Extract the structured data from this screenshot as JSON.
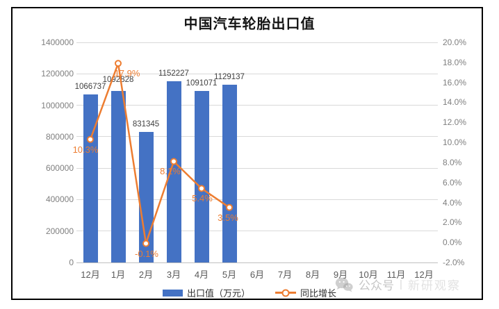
{
  "chart_data": {
    "type": "bar",
    "subtype": "bar-line-combo",
    "title": "中国汽车轮胎出口值",
    "categories": [
      "12月",
      "1月",
      "2月",
      "3月",
      "4月",
      "5月",
      "6月",
      "7月",
      "8月",
      "9月",
      "10月",
      "11月",
      "12月"
    ],
    "series": [
      {
        "name": "出口值（万元）",
        "type": "bar",
        "axis": "left",
        "color": "#4472C4",
        "values": [
          1066737,
          1092828,
          831345,
          1152227,
          1091071,
          1129137
        ],
        "labels": [
          "1066737",
          "1092828",
          "831345",
          "1152227",
          "1091071",
          "1129137"
        ]
      },
      {
        "name": "同比增长",
        "type": "line",
        "axis": "right",
        "color": "#ED7D31",
        "values": [
          10.3,
          17.9,
          -0.1,
          8.1,
          5.4,
          3.5
        ],
        "labels": [
          "10.3%",
          "17.9%",
          "-0.1%",
          "8.1%",
          "5.4%",
          "3.5%"
        ]
      }
    ],
    "left_axis": {
      "min": 0,
      "max": 1400000,
      "step": 200000,
      "ticks": [
        "1400000",
        "1200000",
        "1000000",
        "800000",
        "600000",
        "400000",
        "200000",
        "0"
      ]
    },
    "right_axis": {
      "min": -2.0,
      "max": 20.0,
      "step": 2.0,
      "ticks": [
        "20.0%",
        "18.0%",
        "16.0%",
        "14.0%",
        "12.0%",
        "10.0%",
        "8.0%",
        "6.0%",
        "4.0%",
        "2.0%",
        "0.0%",
        "-2.0%"
      ]
    },
    "grid": true,
    "legend_position": "bottom",
    "legend": [
      {
        "label": "出口值（万元）",
        "swatch": "bar",
        "color": "#4472C4"
      },
      {
        "label": "同比增长",
        "swatch": "line-marker",
        "color": "#ED7D31"
      }
    ]
  },
  "watermark": {
    "icon": "wechat-icon",
    "text": "公众号",
    "separator": "|",
    "text2": "新研观察"
  },
  "colors": {
    "bar": "#4472C4",
    "line": "#ED7D31",
    "bar_label": "#404040",
    "point_label": "#ED7D31",
    "axis_label": "#7f7f7f",
    "x_label": "#595959",
    "gridline": "#d9d9d9",
    "axis_line": "#bfbfbf",
    "title": "#141414",
    "frame_border": "#000000"
  }
}
